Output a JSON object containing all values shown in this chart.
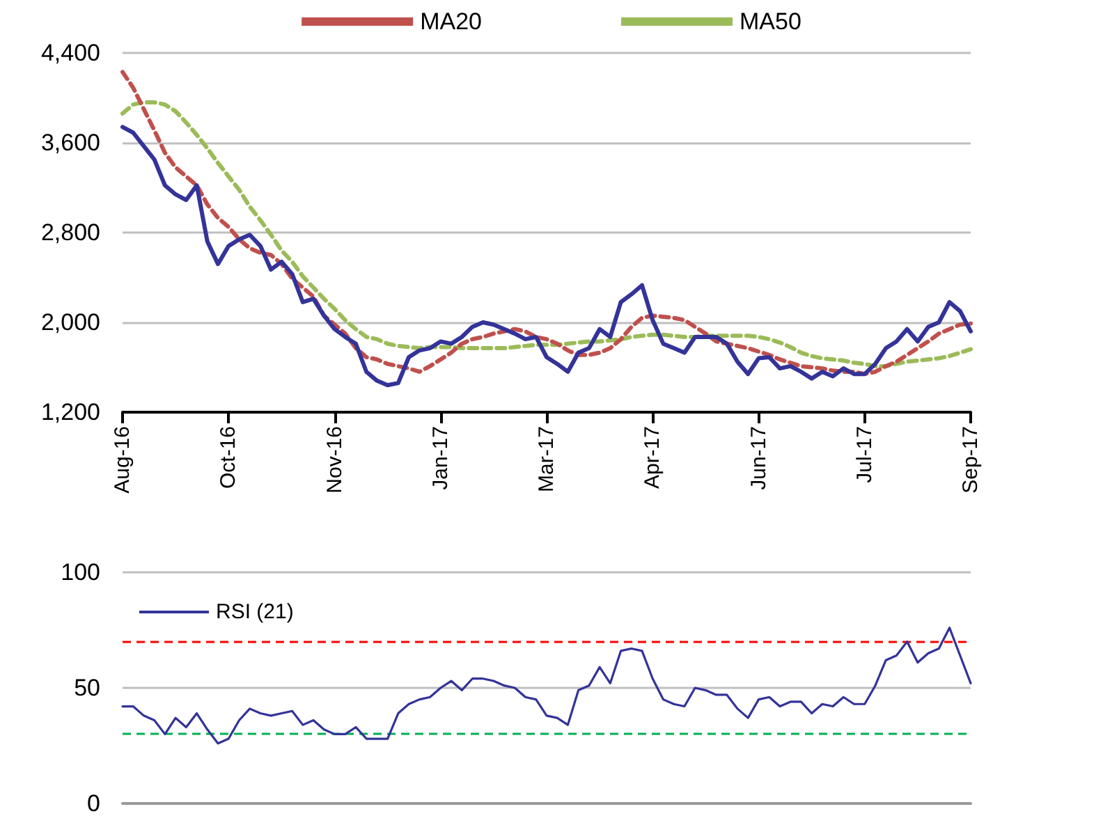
{
  "chart_data": [
    {
      "type": "line",
      "categories": [
        "Aug-16",
        null,
        null,
        null,
        null,
        null,
        null,
        null,
        null,
        null,
        "Oct-16",
        null,
        null,
        null,
        null,
        null,
        null,
        null,
        null,
        null,
        "Nov-16",
        null,
        null,
        null,
        null,
        null,
        null,
        null,
        null,
        null,
        "Jan-17",
        null,
        null,
        null,
        null,
        null,
        null,
        null,
        null,
        null,
        "Mar-17",
        null,
        null,
        null,
        null,
        null,
        null,
        null,
        null,
        null,
        "Apr-17",
        null,
        null,
        null,
        null,
        null,
        null,
        null,
        null,
        null,
        "Jun-17",
        null,
        null,
        null,
        null,
        null,
        null,
        null,
        null,
        null,
        "Jul-17",
        null,
        null,
        null,
        null,
        null,
        null,
        null,
        null,
        null,
        "Sep-17"
      ],
      "series": [
        {
          "color": "#333399",
          "line_style": "solid",
          "values": [
            3740,
            3690,
            3570,
            3450,
            3220,
            3140,
            3090,
            3220,
            2720,
            2520,
            2680,
            2740,
            2780,
            2680,
            2470,
            2540,
            2430,
            2180,
            2210,
            2060,
            1940,
            1870,
            1810,
            1560,
            1480,
            1440,
            1460,
            1690,
            1750,
            1770,
            1830,
            1810,
            1870,
            1960,
            2000,
            1980,
            1940,
            1900,
            1850,
            1870,
            1690,
            1630,
            1560,
            1730,
            1770,
            1940,
            1870,
            2180,
            2250,
            2330,
            2020,
            1810,
            1770,
            1730,
            1870,
            1870,
            1870,
            1810,
            1650,
            1540,
            1680,
            1690,
            1590,
            1610,
            1560,
            1500,
            1560,
            1520,
            1590,
            1540,
            1540,
            1630,
            1770,
            1830,
            1940,
            1830,
            1960,
            2000,
            2180,
            2100,
            1920
          ]
        },
        {
          "name": "MA20",
          "color": "#c0504d",
          "line_style": "dashed",
          "values": [
            4230,
            4090,
            3900,
            3710,
            3510,
            3380,
            3300,
            3220,
            3050,
            2930,
            2850,
            2740,
            2660,
            2620,
            2600,
            2520,
            2390,
            2310,
            2230,
            2060,
            1980,
            1900,
            1770,
            1690,
            1670,
            1630,
            1610,
            1590,
            1560,
            1610,
            1670,
            1730,
            1810,
            1850,
            1870,
            1900,
            1920,
            1940,
            1920,
            1870,
            1850,
            1810,
            1750,
            1710,
            1710,
            1730,
            1770,
            1850,
            1960,
            2040,
            2060,
            2050,
            2040,
            2020,
            1960,
            1900,
            1830,
            1810,
            1790,
            1770,
            1740,
            1710,
            1670,
            1640,
            1610,
            1600,
            1590,
            1570,
            1560,
            1560,
            1540,
            1560,
            1610,
            1650,
            1710,
            1770,
            1830,
            1900,
            1940,
            1980,
            1990
          ]
        },
        {
          "name": "MA50",
          "color": "#9bbb59",
          "line_style": "dashed",
          "values": [
            3860,
            3940,
            3960,
            3960,
            3940,
            3880,
            3780,
            3670,
            3550,
            3420,
            3300,
            3180,
            3030,
            2910,
            2780,
            2640,
            2540,
            2410,
            2310,
            2210,
            2120,
            2020,
            1940,
            1870,
            1850,
            1810,
            1790,
            1780,
            1770,
            1780,
            1780,
            1780,
            1770,
            1770,
            1770,
            1770,
            1770,
            1780,
            1790,
            1800,
            1800,
            1800,
            1810,
            1820,
            1830,
            1830,
            1840,
            1850,
            1870,
            1880,
            1890,
            1890,
            1880,
            1870,
            1870,
            1880,
            1880,
            1880,
            1880,
            1880,
            1870,
            1850,
            1820,
            1780,
            1730,
            1700,
            1680,
            1670,
            1660,
            1640,
            1630,
            1610,
            1610,
            1630,
            1650,
            1660,
            1670,
            1680,
            1700,
            1730,
            1760
          ]
        }
      ],
      "ylim": [
        1200,
        4400
      ],
      "yticks": [
        {
          "value": 1200,
          "label": "1,200"
        },
        {
          "value": 2000,
          "label": "2,000"
        },
        {
          "value": 2800,
          "label": "2,800"
        },
        {
          "value": 3600,
          "label": "3,600"
        },
        {
          "value": 4400,
          "label": "4,400"
        }
      ],
      "grid": "y",
      "legend": "top",
      "marker": "none"
    },
    {
      "type": "line",
      "categories": [
        null,
        null,
        null,
        null,
        null,
        null,
        null,
        null,
        null,
        null,
        null,
        null,
        null,
        null,
        null,
        null,
        null,
        null,
        null,
        null,
        null,
        null,
        null,
        null,
        null,
        null,
        null,
        null,
        null,
        null,
        null,
        null,
        null,
        null,
        null,
        null,
        null,
        null,
        null,
        null,
        null,
        null,
        null,
        null,
        null,
        null,
        null,
        null,
        null,
        null,
        null,
        null,
        null,
        null,
        null,
        null,
        null,
        null,
        null,
        null,
        null,
        null,
        null,
        null,
        null,
        null,
        null,
        null,
        null,
        null,
        null,
        null,
        null,
        null,
        null,
        null,
        null,
        null,
        null,
        null,
        null
      ],
      "series": [
        {
          "name": "RSI (21)",
          "color": "#333399",
          "line_style": "solid",
          "values": [
            42,
            42,
            38,
            36,
            30,
            37,
            33,
            39,
            32,
            26,
            28,
            36,
            41,
            39,
            38,
            39,
            40,
            34,
            36,
            32,
            30,
            30,
            33,
            28,
            28,
            28,
            39,
            43,
            45,
            46,
            50,
            53,
            49,
            54,
            54,
            53,
            51,
            50,
            46,
            45,
            38,
            37,
            34,
            49,
            51,
            59,
            52,
            66,
            67,
            66,
            54,
            45,
            43,
            42,
            50,
            49,
            47,
            47,
            41,
            37,
            45,
            46,
            42,
            44,
            44,
            39,
            43,
            42,
            46,
            43,
            43,
            51,
            62,
            64,
            70,
            61,
            65,
            67,
            76,
            64,
            52
          ]
        }
      ],
      "ylim": [
        0,
        100
      ],
      "yticks": [
        0,
        50,
        100
      ],
      "ref_lines": [
        {
          "axis": "y",
          "value": 70,
          "color": "#ff0000",
          "line_style": "dashed"
        },
        {
          "axis": "y",
          "value": 30,
          "color": "#00b050",
          "line_style": "dashed"
        }
      ],
      "grid": "y",
      "legend": "top left",
      "marker": "none",
      "tick_labels": "y"
    }
  ]
}
